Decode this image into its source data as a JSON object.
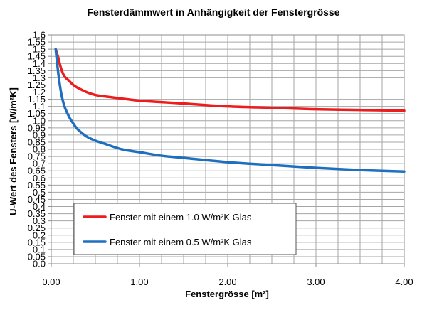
{
  "chart_data": {
    "type": "line",
    "title": "Fensterdämmwert in Anhängigkeit der Fenstergrösse",
    "xlabel": "Fenstergrösse [m²]",
    "ylabel": "U-Wert des Fensters [W/m²K]",
    "xlim": [
      0,
      4
    ],
    "ylim": [
      0,
      1.6
    ],
    "x_ticks": [
      "0.00",
      "1.00",
      "2.00",
      "3.00",
      "4.00"
    ],
    "y_ticks": [
      "0.0",
      "0.05",
      "0.1",
      "0.15",
      "0.2",
      "0.25",
      "0.3",
      "0.35",
      "0.4",
      "0.45",
      "0.5",
      "0.55",
      "0.6",
      "0.65",
      "0.7",
      "0.75",
      "0.8",
      "0.85",
      "0.9",
      "0.95",
      "1.0",
      "1.05",
      "1.1",
      "1.15",
      "1.2",
      "1.25",
      "1.3",
      "1.35",
      "1.4",
      "1.45",
      "1.5",
      "1.55",
      "1.6"
    ],
    "grid": true,
    "legend_position": "lower-left",
    "series": [
      {
        "name": "Fenster mit einem 1.0 W/m²K Glas",
        "color": "#ee1c1c",
        "x": [
          0.05,
          0.08,
          0.1,
          0.12,
          0.15,
          0.2,
          0.25,
          0.3,
          0.4,
          0.5,
          0.6,
          0.8,
          1.0,
          1.25,
          1.5,
          2.0,
          2.5,
          3.0,
          3.5,
          4.0
        ],
        "y": [
          1.5,
          1.44,
          1.39,
          1.35,
          1.31,
          1.28,
          1.25,
          1.23,
          1.2,
          1.18,
          1.17,
          1.155,
          1.14,
          1.13,
          1.12,
          1.1,
          1.09,
          1.08,
          1.075,
          1.07
        ]
      },
      {
        "name": "Fenster mit einem 0.5 W/m²K Glas",
        "color": "#1f6fbf",
        "x": [
          0.05,
          0.08,
          0.1,
          0.12,
          0.15,
          0.2,
          0.25,
          0.3,
          0.4,
          0.5,
          0.6,
          0.8,
          1.0,
          1.25,
          1.5,
          2.0,
          2.5,
          3.0,
          3.5,
          4.0
        ],
        "y": [
          1.5,
          1.33,
          1.24,
          1.17,
          1.1,
          1.03,
          0.98,
          0.94,
          0.89,
          0.86,
          0.84,
          0.8,
          0.78,
          0.755,
          0.74,
          0.71,
          0.69,
          0.67,
          0.655,
          0.645
        ]
      }
    ]
  }
}
